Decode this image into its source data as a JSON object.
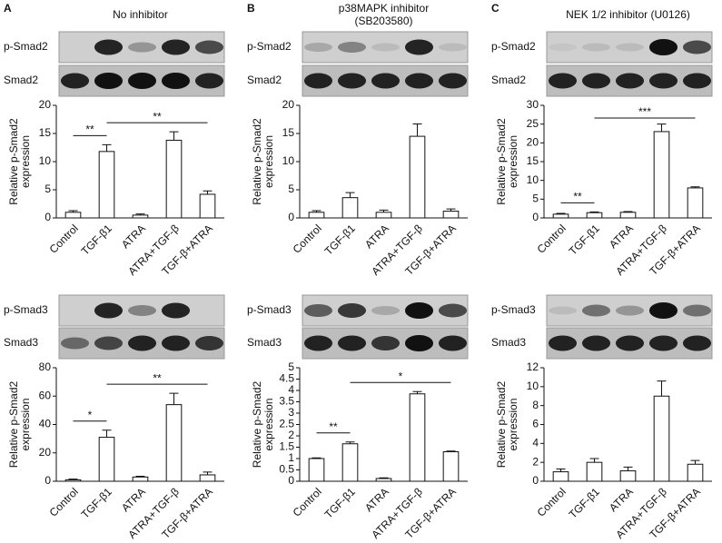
{
  "chart_data": [
    {
      "type": "bar",
      "panel": "A",
      "title": "No inhibitor",
      "blots": [
        "p-Smad2",
        "Smad2"
      ],
      "ylabel": [
        "Relative p-Smad2",
        "expression"
      ],
      "categories": [
        "Control",
        "TGF-β1",
        "ATRA",
        "ATRA+TGF-β",
        "TGF-β+ATRA"
      ],
      "values": [
        1.0,
        11.8,
        0.5,
        13.8,
        4.2
      ],
      "errors": [
        0.3,
        1.2,
        0.2,
        1.5,
        0.6
      ],
      "ylim": [
        0,
        20
      ],
      "yticks": [
        0,
        5,
        10,
        15,
        20
      ],
      "significance": [
        {
          "text": "**",
          "between": [
            0,
            1
          ]
        },
        {
          "text": "**",
          "between": [
            1,
            4
          ]
        }
      ]
    },
    {
      "type": "bar",
      "panel": "B",
      "title": "p38MAPK inhibitor",
      "subtitle": "(SB203580)",
      "blots": [
        "p-Smad2",
        "Smad2"
      ],
      "ylabel": [
        "Relative p-Smad2",
        "expression"
      ],
      "categories": [
        "Control",
        "TGF-β1",
        "ATRA",
        "ATRA+TGF-β",
        "TGF-β+ATRA"
      ],
      "values": [
        1.0,
        3.6,
        1.0,
        14.5,
        1.2
      ],
      "errors": [
        0.3,
        0.9,
        0.4,
        2.2,
        0.4
      ],
      "ylim": [
        0,
        20
      ],
      "yticks": [
        0,
        5,
        10,
        15,
        20
      ]
    },
    {
      "type": "bar",
      "panel": "C",
      "title": "NEK 1/2 inhibitor (U0126)",
      "blots": [
        "p-Smad2",
        "Smad2"
      ],
      "ylabel": [
        "Relative p-Smad2",
        "expression"
      ],
      "categories": [
        "Control",
        "TGF-β1",
        "ATRA",
        "ATRA+TGF-β",
        "TGF-β+ATRA"
      ],
      "values": [
        1.0,
        1.4,
        1.5,
        23,
        8
      ],
      "errors": [
        0.2,
        0.2,
        0.2,
        2,
        0.3
      ],
      "ylim": [
        0,
        30
      ],
      "yticks": [
        0,
        5,
        10,
        15,
        20,
        25,
        30
      ],
      "significance": [
        {
          "text": "**",
          "between": [
            0,
            1
          ]
        },
        {
          "text": "***",
          "between": [
            1,
            4
          ]
        }
      ]
    },
    {
      "type": "bar",
      "blots": [
        "p-Smad3",
        "Smad3"
      ],
      "ylabel": [
        "Relative p-Smad2",
        "expression"
      ],
      "categories": [
        "Control",
        "TGF-β1",
        "ATRA",
        "ATRA+TGF-β",
        "TGF-β+ATRA"
      ],
      "values": [
        1,
        31,
        3,
        54,
        4.5
      ],
      "errors": [
        0.5,
        5,
        0.5,
        8,
        2
      ],
      "ylim": [
        0,
        80
      ],
      "yticks": [
        0,
        20,
        40,
        60,
        80
      ],
      "significance": [
        {
          "text": "*",
          "between": [
            0,
            1
          ]
        },
        {
          "text": "**",
          "between": [
            1,
            4
          ]
        }
      ]
    },
    {
      "type": "bar",
      "blots": [
        "p-Smad3",
        "Smad3"
      ],
      "ylabel": [
        "Relative p-Smad2",
        "expression"
      ],
      "categories": [
        "Control",
        "TGF-β1",
        "ATRA",
        "ATRA+TGF-β",
        "TGF-β+ATRA"
      ],
      "values": [
        1.0,
        1.65,
        0.12,
        3.85,
        1.3
      ],
      "errors": [
        0.03,
        0.08,
        0.03,
        0.1,
        0.03
      ],
      "ylim": [
        0,
        5
      ],
      "yticks": [
        0,
        0.5,
        1,
        1.5,
        2,
        2.5,
        3,
        3.5,
        4,
        4.5,
        5
      ],
      "significance": [
        {
          "text": "**",
          "between": [
            0,
            1
          ]
        },
        {
          "text": "*",
          "between": [
            1,
            4
          ]
        }
      ]
    },
    {
      "type": "bar",
      "blots": [
        "p-Smad3",
        "Smad3"
      ],
      "ylabel": [
        "Relative p-Smad2",
        "expression"
      ],
      "categories": [
        "Control",
        "TGF-β1",
        "ATRA",
        "ATRA+TGF-β",
        "TGF-β+ATRA"
      ],
      "values": [
        1.0,
        2.0,
        1.1,
        9.0,
        1.8
      ],
      "errors": [
        0.3,
        0.4,
        0.4,
        1.6,
        0.4
      ],
      "ylim": [
        0,
        12
      ],
      "yticks": [
        0,
        2,
        4,
        6,
        8,
        10,
        12
      ]
    }
  ]
}
